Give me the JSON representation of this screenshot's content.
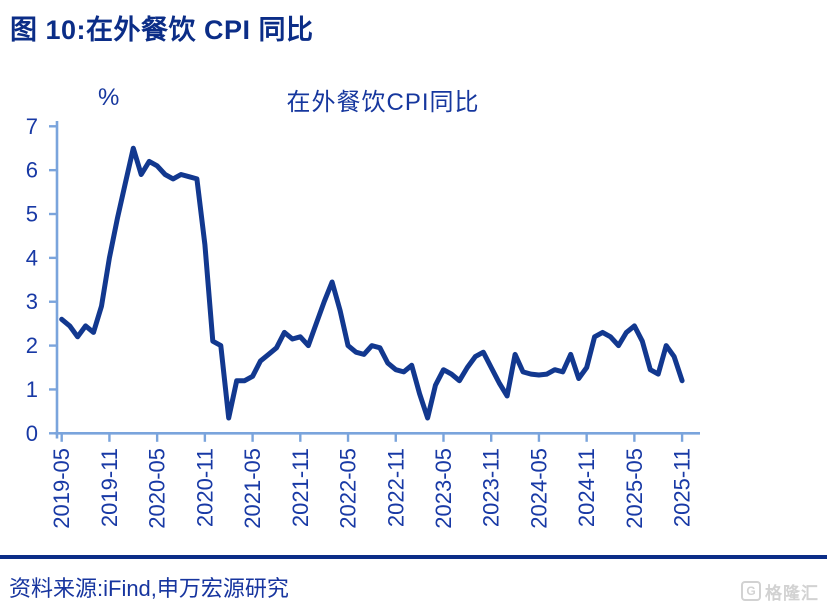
{
  "figure": {
    "title": "图 10:在外餐饮 CPI 同比"
  },
  "footer": {
    "source": "资料来源:iFind,申万宏源研究"
  },
  "watermark": {
    "icon": "G",
    "text": "格隆汇"
  },
  "colors": {
    "title_navy": "#0b2d87",
    "line": "#12388f",
    "axis": "#7aa4dc",
    "tick_label": "#1839a5",
    "footer_text": "#17359f",
    "watermark_gray": "#d2d2d2"
  },
  "chart_data": {
    "type": "line",
    "title": "在外餐饮CPI同比",
    "unit_label": "%",
    "xlabel": "",
    "ylabel": "",
    "ylim": [
      0,
      7
    ],
    "y_ticks": [
      0,
      1,
      2,
      3,
      4,
      5,
      6,
      7
    ],
    "grid": false,
    "legend_position": "none",
    "x_tick_labels": [
      "2019-05",
      "2019-11",
      "2020-05",
      "2020-11",
      "2021-05",
      "2021-11",
      "2022-05",
      "2022-11",
      "2023-05",
      "2023-11",
      "2024-05",
      "2024-11",
      "2025-05",
      "2025-11"
    ],
    "x_tick_interval_months": 6,
    "series_name": "在外餐饮CPI同比",
    "x": [
      "2019-05",
      "2019-06",
      "2019-07",
      "2019-08",
      "2019-09",
      "2019-10",
      "2019-11",
      "2019-12",
      "2020-01",
      "2020-02",
      "2020-03",
      "2020-04",
      "2020-05",
      "2020-06",
      "2020-07",
      "2020-08",
      "2020-09",
      "2020-10",
      "2020-11",
      "2020-12",
      "2021-01",
      "2021-02",
      "2021-03",
      "2021-04",
      "2021-05",
      "2021-06",
      "2021-07",
      "2021-08",
      "2021-09",
      "2021-10",
      "2021-11",
      "2021-12",
      "2022-01",
      "2022-02",
      "2022-03",
      "2022-04",
      "2022-05",
      "2022-06",
      "2022-07",
      "2022-08",
      "2022-09",
      "2022-10",
      "2022-11",
      "2022-12",
      "2023-01",
      "2023-02",
      "2023-03",
      "2023-04",
      "2023-05",
      "2023-06",
      "2023-07",
      "2023-08",
      "2023-09",
      "2023-10",
      "2023-11",
      "2023-12",
      "2024-01",
      "2024-02",
      "2024-03",
      "2024-04",
      "2024-05",
      "2024-06",
      "2024-07",
      "2024-08",
      "2024-09",
      "2024-10",
      "2024-11",
      "2024-12",
      "2025-01",
      "2025-02",
      "2025-03",
      "2025-04",
      "2025-05",
      "2025-06",
      "2025-07",
      "2025-08",
      "2025-09",
      "2025-10",
      "2025-11"
    ],
    "values": [
      2.6,
      2.45,
      2.2,
      2.45,
      2.3,
      2.9,
      4.0,
      4.9,
      5.7,
      6.5,
      5.9,
      6.2,
      6.1,
      5.9,
      5.8,
      5.9,
      5.85,
      5.8,
      4.3,
      2.1,
      2.0,
      0.35,
      1.2,
      1.2,
      1.3,
      1.65,
      1.8,
      1.95,
      2.3,
      2.15,
      2.2,
      2.0,
      2.5,
      3.0,
      3.45,
      2.8,
      2.0,
      1.85,
      1.8,
      2.0,
      1.95,
      1.6,
      1.45,
      1.4,
      1.55,
      0.9,
      0.35,
      1.1,
      1.45,
      1.35,
      1.2,
      1.5,
      1.75,
      1.85,
      1.5,
      1.15,
      0.85,
      1.8,
      1.4,
      1.35,
      1.33,
      1.35,
      1.45,
      1.4,
      1.8,
      1.25,
      1.5,
      2.2,
      2.3,
      2.2,
      2.0,
      2.3,
      2.45,
      2.1,
      1.45,
      1.35,
      2.0,
      1.75,
      1.2
    ]
  }
}
